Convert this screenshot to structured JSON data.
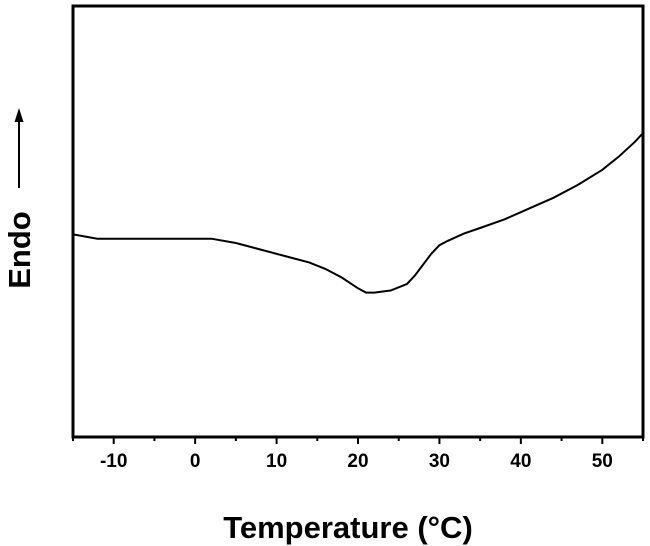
{
  "chart_data": {
    "type": "line",
    "title": "",
    "xlabel": "Temperature (°C)",
    "ylabel": "Endo",
    "ylabel_arrow": "up",
    "xlim": [
      -15,
      55
    ],
    "ylim": [
      0,
      10
    ],
    "x_ticks": [
      -10,
      0,
      10,
      20,
      30,
      40,
      50
    ],
    "y_ticks_labeled": false,
    "grid": false,
    "line_color": "#000000",
    "series": [
      {
        "values_note": "",
        "x": [
          -15,
          -12,
          -5,
          2,
          5,
          8,
          11,
          14,
          16,
          18,
          20,
          21,
          22,
          24,
          26,
          27,
          28,
          29,
          30,
          31,
          33,
          35,
          38,
          41,
          44,
          47,
          50,
          52,
          54,
          55
        ],
        "y": [
          4.7,
          4.6,
          4.6,
          4.6,
          4.5,
          4.35,
          4.2,
          4.05,
          3.9,
          3.7,
          3.45,
          3.35,
          3.35,
          3.4,
          3.55,
          3.75,
          4.0,
          4.25,
          4.45,
          4.55,
          4.72,
          4.85,
          5.05,
          5.3,
          5.55,
          5.85,
          6.2,
          6.5,
          6.85,
          7.05
        ]
      }
    ]
  }
}
